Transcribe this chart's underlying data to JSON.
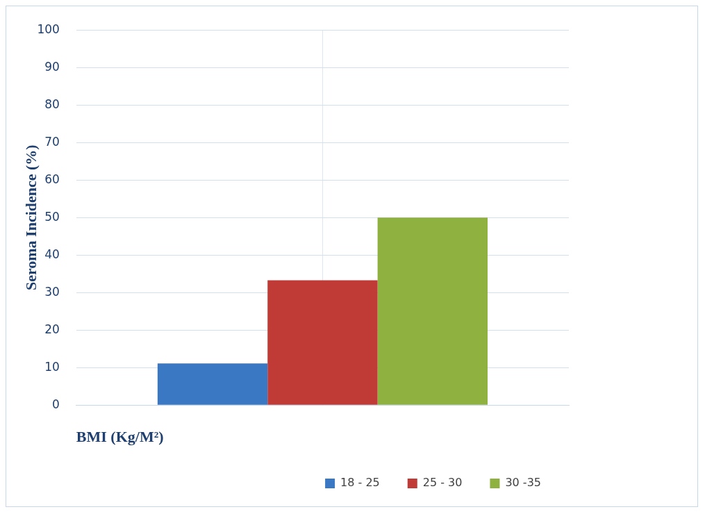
{
  "chart_data": {
    "type": "bar",
    "xlabel": "BMI (Kg/M²)",
    "ylabel": "Seroma Incidence (%)",
    "categories": [
      null
    ],
    "series": [
      {
        "name": "18 - 25",
        "color": "#3a78c4",
        "values": [
          11.1
        ]
      },
      {
        "name": "25 - 30",
        "color": "#c03a36",
        "values": [
          33.3
        ]
      },
      {
        "name": "30 -35",
        "color": "#8fb140",
        "values": [
          50
        ]
      }
    ],
    "ylim": [
      0,
      100
    ],
    "yticks": [
      0,
      10,
      20,
      30,
      40,
      50,
      60,
      70,
      80,
      90,
      100
    ],
    "grid": true,
    "legend": "bottom"
  }
}
